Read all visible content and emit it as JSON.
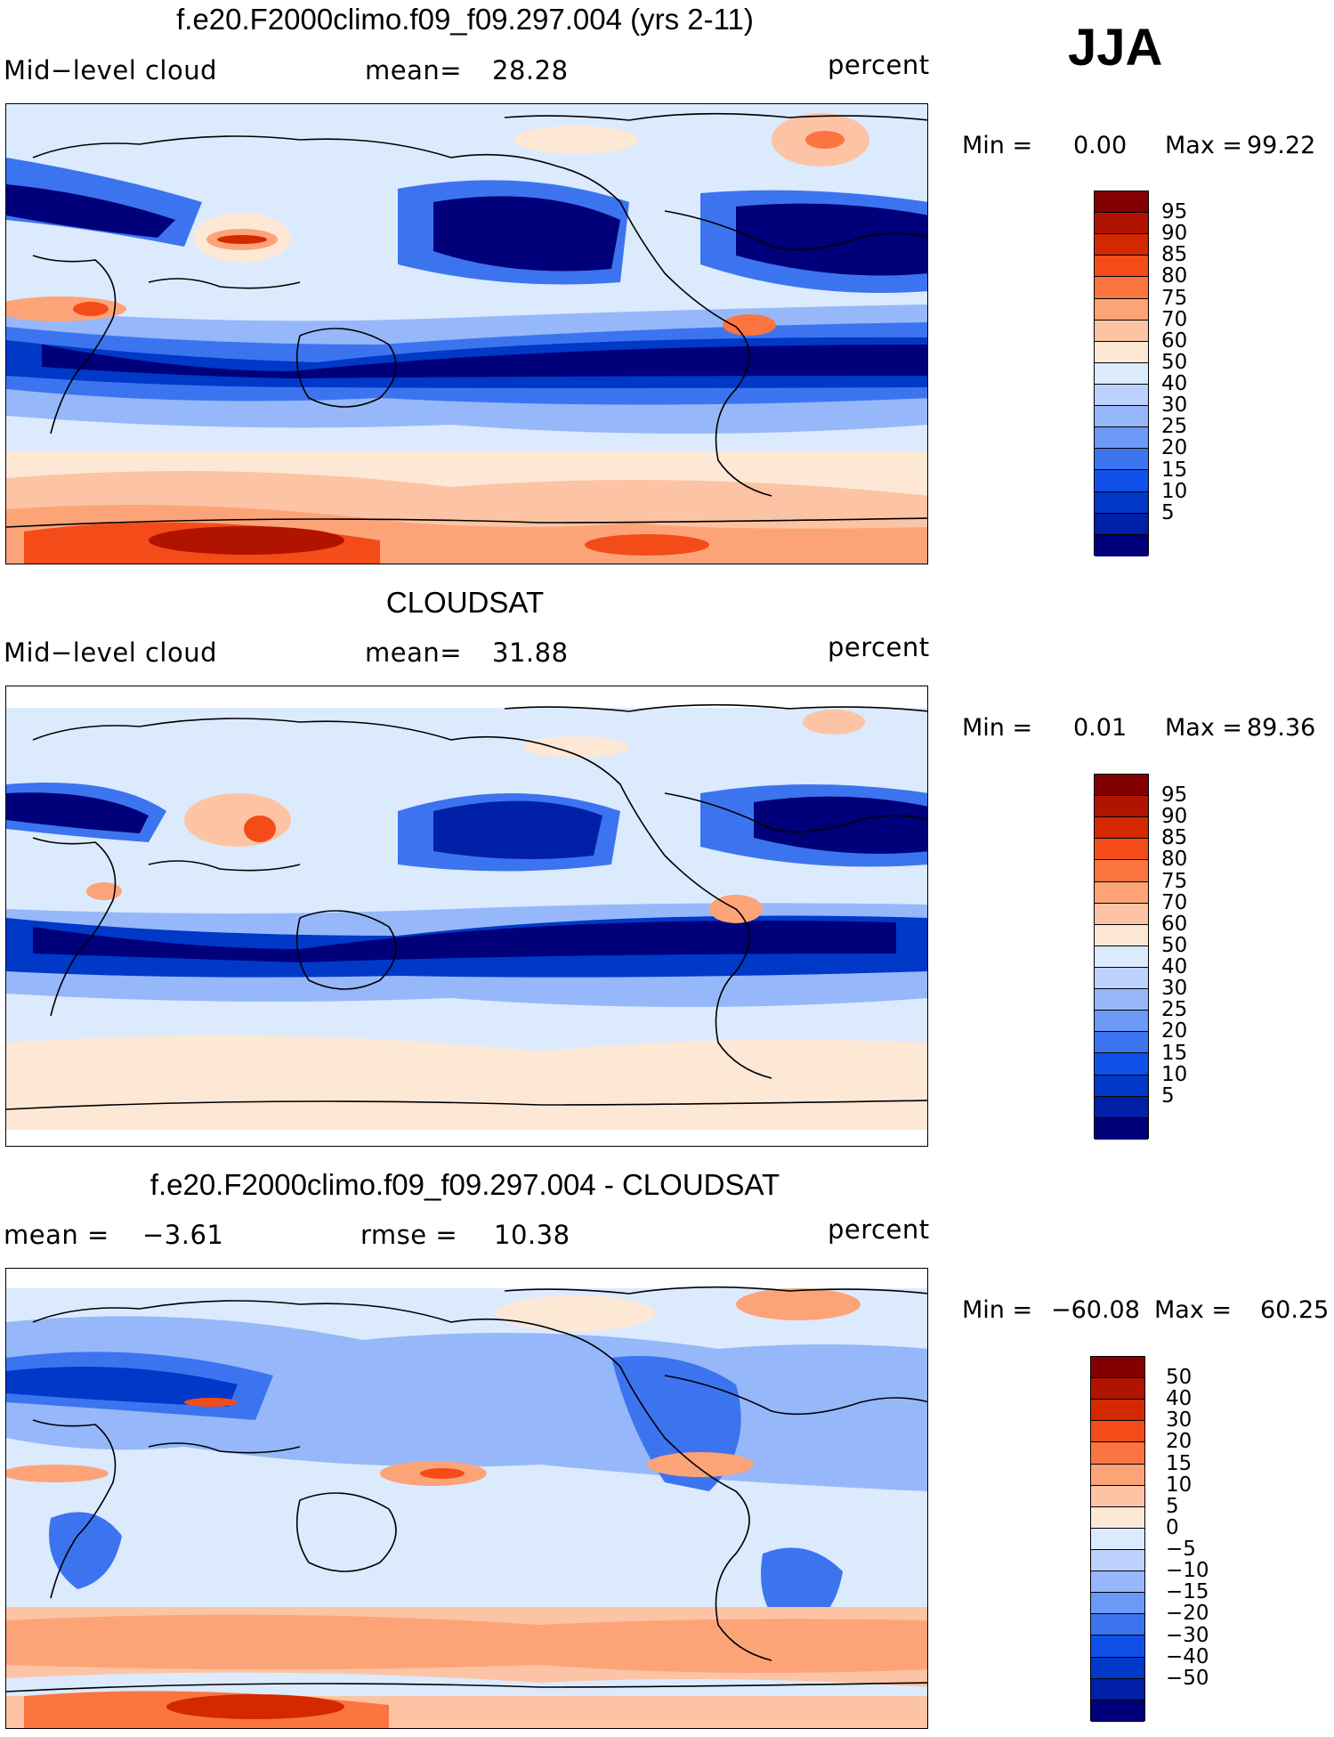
{
  "season": "JJA",
  "scales": {
    "abs": {
      "colors": [
        "#00007a",
        "#0020a8",
        "#0038c8",
        "#1050e8",
        "#3c74f0",
        "#6c98f6",
        "#96b8fa",
        "#bcd2fc",
        "#dceafd",
        "#fde8d6",
        "#fcc4a4",
        "#fca478",
        "#fc7440",
        "#f44c18",
        "#d42800",
        "#b01400",
        "#840000"
      ],
      "labels": [
        "95",
        "90",
        "85",
        "80",
        "75",
        "70",
        "60",
        "50",
        "40",
        "30",
        "25",
        "20",
        "15",
        "10",
        "5"
      ]
    },
    "diff": {
      "colors": [
        "#00007a",
        "#0020a8",
        "#0038c8",
        "#1050e8",
        "#3c74f0",
        "#6c98f6",
        "#96b8fa",
        "#bcd2fc",
        "#dceafd",
        "#fde8d6",
        "#fcc4a4",
        "#fca478",
        "#fc7440",
        "#f44c18",
        "#d42800",
        "#b01400",
        "#840000"
      ],
      "labels": [
        "50",
        "40",
        "30",
        "20",
        "15",
        "10",
        "5",
        "0",
        "−5",
        "−10",
        "−15",
        "−20",
        "−30",
        "−40",
        "−50"
      ]
    }
  },
  "panels": [
    {
      "title": "f.e20.F2000climo.f09_f09.297.004 (yrs 2-11)",
      "left_label": "Mid−level cloud",
      "mid_label": "mean=",
      "mid_value": "28.28",
      "units": "percent",
      "min_label": "Min =",
      "min_value": "0.00",
      "max_label": "Max =",
      "max_value": "99.22",
      "scale": "abs"
    },
    {
      "title": "CLOUDSAT",
      "left_label": "Mid−level cloud",
      "mid_label": "mean=",
      "mid_value": "31.88",
      "units": "percent",
      "min_label": "Min =",
      "min_value": "0.01",
      "max_label": "Max =",
      "max_value": "89.36",
      "scale": "abs"
    },
    {
      "title": "f.e20.F2000climo.f09_f09.297.004 - CLOUDSAT",
      "left_label": "mean =",
      "left_value": "−3.61",
      "mid_label": "rmse =",
      "mid_value": "10.38",
      "units": "percent",
      "min_label": "Min =",
      "min_value": "−60.08",
      "max_label": "Max =",
      "max_value": "60.25",
      "scale": "diff"
    }
  ]
}
